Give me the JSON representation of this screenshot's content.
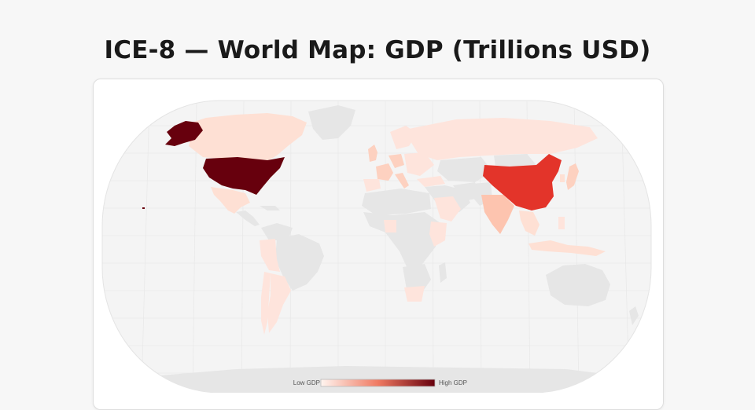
{
  "title": "ICE-8 — World Map: GDP (Trillions USD)",
  "legend": {
    "low_label": "Low GDP",
    "high_label": "High GDP"
  },
  "colors": {
    "ocean": "#f4f4f4",
    "land_nodata": "#e6e6e6",
    "graticule": "#e9e9e9",
    "scale_low": "#fee4dc",
    "scale_mid": "#e3342a",
    "scale_high": "#67000d"
  },
  "countries": [
    {
      "name": "United States",
      "level": "highest"
    },
    {
      "name": "China",
      "level": "high"
    },
    {
      "name": "India",
      "level": "low-mid"
    },
    {
      "name": "Japan",
      "level": "low"
    },
    {
      "name": "Germany",
      "level": "low"
    },
    {
      "name": "United Kingdom",
      "level": "low"
    },
    {
      "name": "France",
      "level": "low"
    },
    {
      "name": "Italy",
      "level": "low"
    },
    {
      "name": "Brazil",
      "level": "low"
    },
    {
      "name": "Canada",
      "level": "low"
    },
    {
      "name": "Russia",
      "level": "low"
    },
    {
      "name": "Mexico",
      "level": "low"
    },
    {
      "name": "Australia",
      "level": "no data"
    },
    {
      "name": "South Korea",
      "level": "low"
    },
    {
      "name": "Indonesia",
      "level": "low"
    },
    {
      "name": "Saudi Arabia",
      "level": "low"
    },
    {
      "name": "Turkey",
      "level": "low"
    },
    {
      "name": "Argentina",
      "level": "low"
    },
    {
      "name": "South Africa",
      "level": "low"
    }
  ]
}
